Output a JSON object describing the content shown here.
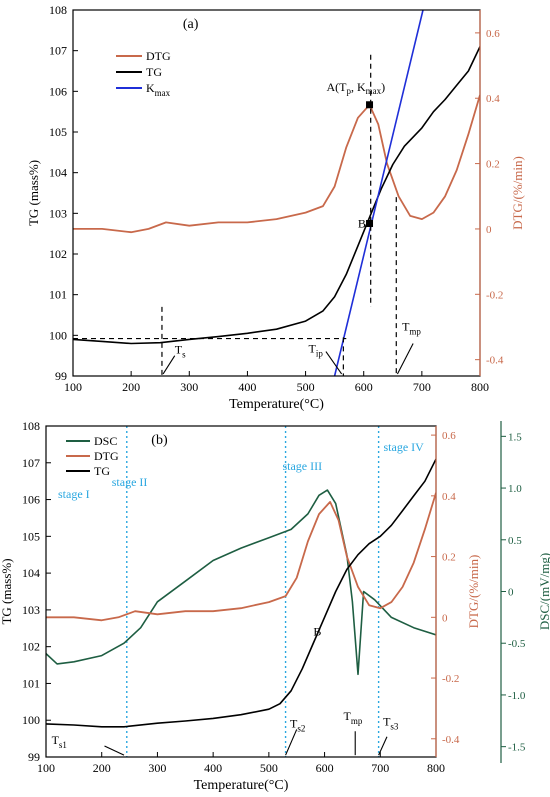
{
  "colors": {
    "tg": "#000000",
    "dtg": "#c8694b",
    "dsc": "#1e5e42",
    "kmax": "#1f2fd8",
    "stage_line": "#2aa7e0",
    "axis_right_a": "#c8694b",
    "axis_right_b2": "#1e5e42"
  },
  "chart_data": [
    {
      "type": "line",
      "panel_label": "(a)",
      "xlabel": "Temperature(°C)",
      "ylabel": "TG (mass%)",
      "y2label": "DTG/(%/min)",
      "xlim": [
        100,
        800
      ],
      "ylim": [
        99,
        108
      ],
      "y2lim": [
        -0.45,
        0.67
      ],
      "xticks": [
        100,
        200,
        300,
        400,
        500,
        600,
        700,
        800
      ],
      "yticks": [
        99,
        100,
        101,
        102,
        103,
        104,
        105,
        106,
        107,
        108
      ],
      "y2ticks": [
        -0.4,
        -0.2,
        0.0,
        0.2,
        0.4,
        0.6
      ],
      "legend_position": "top-left",
      "series": [
        {
          "name": "DTG",
          "axis": "y2",
          "x": [
            100,
            150,
            200,
            230,
            260,
            300,
            350,
            400,
            450,
            500,
            530,
            550,
            570,
            590,
            610,
            625,
            640,
            660,
            680,
            700,
            720,
            740,
            760,
            780,
            800
          ],
          "y": [
            0.0,
            0.0,
            -0.01,
            0.0,
            0.02,
            0.01,
            0.02,
            0.02,
            0.03,
            0.05,
            0.07,
            0.13,
            0.25,
            0.34,
            0.38,
            0.32,
            0.2,
            0.1,
            0.04,
            0.03,
            0.05,
            0.1,
            0.18,
            0.29,
            0.41
          ]
        },
        {
          "name": "TG",
          "axis": "y",
          "x": [
            100,
            150,
            200,
            250,
            300,
            350,
            400,
            450,
            500,
            530,
            550,
            570,
            590,
            610,
            630,
            650,
            670,
            700,
            720,
            740,
            760,
            780,
            800
          ],
          "y": [
            99.9,
            99.85,
            99.8,
            99.82,
            99.9,
            99.97,
            100.05,
            100.15,
            100.35,
            100.6,
            100.95,
            101.5,
            102.2,
            102.9,
            103.6,
            104.2,
            104.65,
            105.1,
            105.5,
            105.8,
            106.15,
            106.5,
            107.1
          ]
        },
        {
          "name": "Kmax",
          "axis": "y",
          "x": [
            550,
            702
          ],
          "y": [
            99.0,
            108.0
          ]
        }
      ],
      "legend_labels": [
        "DTG",
        "TG",
        "K"
      ],
      "legend_sub": "max",
      "annotations": {
        "point_A": "A(T",
        "point_A_sub": "p",
        "point_A_mid": ", K",
        "point_A_sub2": "max",
        "point_A_end": ")",
        "point_B": "B",
        "ts": "T",
        "ts_sub": "s",
        "tip": "T",
        "tip_sub": "ip",
        "tmp": "T",
        "tmp_sub": "mp"
      }
    },
    {
      "type": "line",
      "panel_label": "(b)",
      "xlabel": "Temperature(°C)",
      "ylabel": "TG (mass%)",
      "y2label": "DTG/(%/min)",
      "y3label": "DSC/(mV/mg)",
      "xlim": [
        100,
        800
      ],
      "ylim": [
        99,
        108
      ],
      "y2lim": [
        -0.46,
        0.63
      ],
      "y3lim": [
        -1.6,
        1.6
      ],
      "xticks": [
        100,
        200,
        300,
        400,
        500,
        600,
        700,
        800
      ],
      "yticks": [
        99,
        100,
        101,
        102,
        103,
        104,
        105,
        106,
        107,
        108
      ],
      "y2ticks": [
        -0.4,
        -0.2,
        0.0,
        0.2,
        0.4,
        0.6
      ],
      "y3ticks": [
        -1.5,
        -1.0,
        -0.5,
        0,
        0.5,
        1.0,
        1.5
      ],
      "y3ticklabels": [
        "-1.5",
        "-1.0",
        "-0.5",
        "0",
        "0.5",
        "1.0",
        "1.5"
      ],
      "legend_position": "top-left",
      "stage_lines_x": [
        245,
        530,
        697
      ],
      "stages": [
        "stage I",
        "stage II",
        "stage III",
        "stage IV"
      ],
      "series": [
        {
          "name": "DSC",
          "axis": "y3",
          "x": [
            100,
            120,
            150,
            200,
            240,
            270,
            300,
            350,
            400,
            450,
            500,
            540,
            570,
            590,
            605,
            620,
            640,
            650,
            660,
            670,
            690,
            720,
            760,
            800
          ],
          "y": [
            -0.6,
            -0.7,
            -0.68,
            -0.62,
            -0.5,
            -0.35,
            -0.1,
            0.1,
            0.3,
            0.42,
            0.52,
            0.6,
            0.75,
            0.93,
            0.98,
            0.85,
            0.35,
            -0.1,
            -0.8,
            0.0,
            -0.08,
            -0.25,
            -0.35,
            -0.42
          ]
        },
        {
          "name": "DTG",
          "axis": "y2",
          "x": [
            100,
            150,
            200,
            230,
            260,
            300,
            350,
            400,
            450,
            500,
            530,
            550,
            570,
            590,
            610,
            625,
            640,
            660,
            680,
            700,
            720,
            740,
            760,
            780,
            800
          ],
          "y": [
            0.0,
            0.0,
            -0.01,
            0.0,
            0.02,
            0.01,
            0.02,
            0.02,
            0.03,
            0.05,
            0.07,
            0.13,
            0.25,
            0.34,
            0.38,
            0.32,
            0.2,
            0.1,
            0.04,
            0.03,
            0.05,
            0.1,
            0.18,
            0.29,
            0.41
          ]
        },
        {
          "name": "TG",
          "axis": "y",
          "x": [
            100,
            150,
            200,
            240,
            300,
            350,
            400,
            450,
            500,
            520,
            540,
            560,
            580,
            600,
            620,
            640,
            660,
            680,
            700,
            720,
            740,
            760,
            780,
            800
          ],
          "y": [
            99.9,
            99.87,
            99.82,
            99.82,
            99.92,
            99.98,
            100.05,
            100.15,
            100.3,
            100.45,
            100.8,
            101.4,
            102.1,
            102.8,
            103.5,
            104.1,
            104.5,
            104.8,
            105.0,
            105.3,
            105.7,
            106.1,
            106.5,
            107.1
          ]
        }
      ],
      "annotations": {
        "point_B": "B",
        "ts1": "T",
        "ts1_sub": "s1",
        "ts2": "T",
        "ts2_sub": "s2",
        "tmp": "T",
        "tmp_sub": "mp",
        "ts3": "T",
        "ts3_sub": "s3"
      }
    }
  ]
}
